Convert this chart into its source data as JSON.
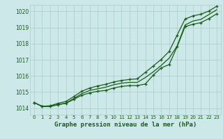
{
  "xlabel": "Graphe pression niveau de la mer (hPa)",
  "xlim": [
    -0.5,
    23.5
  ],
  "ylim": [
    1013.6,
    1020.4
  ],
  "yticks": [
    1014,
    1015,
    1016,
    1017,
    1018,
    1019,
    1020
  ],
  "xticks": [
    0,
    1,
    2,
    3,
    4,
    5,
    6,
    7,
    8,
    9,
    10,
    11,
    12,
    13,
    14,
    15,
    16,
    17,
    18,
    19,
    20,
    21,
    22,
    23
  ],
  "background_color": "#cce8e8",
  "grid_color": "#aacccc",
  "line_color": "#1a5c1a",
  "line1_x": [
    0,
    1,
    2,
    3,
    4,
    5,
    6,
    7,
    8,
    9,
    10,
    11,
    12,
    13,
    14,
    15,
    16,
    17,
    18,
    19,
    20,
    21,
    22,
    23
  ],
  "line1_y": [
    1014.35,
    1014.12,
    1014.1,
    1014.22,
    1014.3,
    1014.55,
    1014.8,
    1014.95,
    1015.05,
    1015.1,
    1015.25,
    1015.35,
    1015.4,
    1015.4,
    1015.5,
    1016.05,
    1016.5,
    1016.7,
    1017.8,
    1019.05,
    1019.2,
    1019.3,
    1019.55,
    1019.85
  ],
  "line2_x": [
    0,
    1,
    2,
    3,
    4,
    5,
    6,
    7,
    8,
    9,
    10,
    11,
    12,
    13,
    14,
    15,
    16,
    17,
    18,
    19,
    20,
    21,
    22,
    23
  ],
  "line2_y": [
    1014.35,
    1014.12,
    1014.12,
    1014.22,
    1014.32,
    1014.6,
    1014.9,
    1015.1,
    1015.2,
    1015.3,
    1015.45,
    1015.55,
    1015.6,
    1015.6,
    1015.9,
    1016.25,
    1016.65,
    1017.1,
    1017.85,
    1019.15,
    1019.4,
    1019.5,
    1019.8,
    1020.1
  ],
  "line3_x": [
    0,
    1,
    2,
    3,
    4,
    5,
    6,
    7,
    8,
    9,
    10,
    11,
    12,
    13,
    14,
    15,
    16,
    17,
    18,
    19,
    20,
    21,
    22,
    23
  ],
  "line3_y": [
    1014.35,
    1014.12,
    1014.15,
    1014.3,
    1014.42,
    1014.72,
    1015.05,
    1015.25,
    1015.38,
    1015.48,
    1015.62,
    1015.72,
    1015.78,
    1015.82,
    1016.22,
    1016.62,
    1017.02,
    1017.52,
    1018.52,
    1019.52,
    1019.72,
    1019.82,
    1020.02,
    1020.32
  ],
  "font_color": "#1a5c1a",
  "marker_color": "#1a5c1a"
}
